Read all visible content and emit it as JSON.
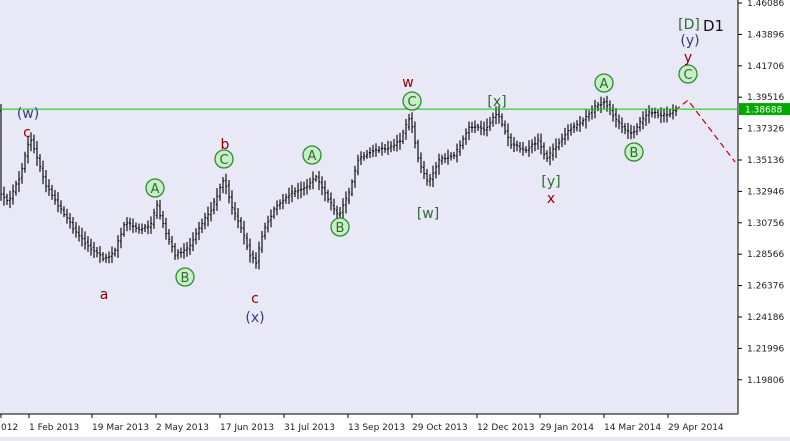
{
  "chart_data": {
    "type": "candlestick-ohlc",
    "timeframe_label": "D1",
    "instrument": "",
    "y_ticks": [
      "1.46086",
      "1.43896",
      "1.41706",
      "1.39516",
      "1.37326",
      "1.35136",
      "1.32946",
      "1.30756",
      "1.28566",
      "1.26376",
      "1.24186",
      "1.21996",
      "1.19806"
    ],
    "x_ticks": [
      "012",
      "1 Feb 2013",
      "19 Mar 2013",
      "2 May 2013",
      "17 Jun 2013",
      "31 Jul 2013",
      "13 Sep 2013",
      "29 Oct 2013",
      "12 Dec 2013",
      "29 Jan 2014",
      "14 Mar 2014",
      "29 Apr 2014"
    ],
    "ylim": [
      1.18,
      1.461
    ],
    "current_price": 1.38688,
    "current_price_label": "1.38688",
    "colors": {
      "background": "#e8e8f6",
      "bars": "#000000",
      "price_line": "#00cc00",
      "price_label_bg": "#00aa00",
      "wave_dark_red": "#8b0000",
      "wave_green": "#2e6b2e",
      "wave_navy": "#3a3a7a",
      "circle_fill": "#c8f0c8",
      "circle_stroke": "#2e8b2e",
      "forecast": "#cc0000"
    },
    "wave_labels": [
      {
        "text": "(w)",
        "style": "navy",
        "circled": false
      },
      {
        "text": "c",
        "style": "dark_red",
        "circled": false
      },
      {
        "text": "A",
        "style": "green",
        "circled": true
      },
      {
        "text": "a",
        "style": "dark_red",
        "circled": false
      },
      {
        "text": "B",
        "style": "green",
        "circled": true
      },
      {
        "text": "b",
        "style": "dark_red",
        "circled": false
      },
      {
        "text": "C",
        "style": "green",
        "circled": true
      },
      {
        "text": "c",
        "style": "dark_red",
        "circled": false
      },
      {
        "text": "(x)",
        "style": "navy",
        "circled": false
      },
      {
        "text": "A",
        "style": "green",
        "circled": true
      },
      {
        "text": "B",
        "style": "green",
        "circled": true
      },
      {
        "text": "w",
        "style": "dark_red",
        "circled": false
      },
      {
        "text": "C",
        "style": "green",
        "circled": true
      },
      {
        "text": "[w]",
        "style": "green",
        "circled": false
      },
      {
        "text": "[x]",
        "style": "green",
        "circled": false
      },
      {
        "text": "[y]",
        "style": "green",
        "circled": false
      },
      {
        "text": "x",
        "style": "dark_red",
        "circled": false
      },
      {
        "text": "A",
        "style": "green",
        "circled": true
      },
      {
        "text": "B",
        "style": "green",
        "circled": true
      },
      {
        "text": "C",
        "style": "green",
        "circled": true
      },
      {
        "text": "y",
        "style": "dark_red",
        "circled": false
      },
      {
        "text": "(y)",
        "style": "navy",
        "circled": false
      },
      {
        "text": "[D]",
        "style": "green",
        "circled": false
      }
    ],
    "price_path": [
      [
        0,
        1.328
      ],
      [
        8,
        1.322
      ],
      [
        20,
        1.34
      ],
      [
        30,
        1.368
      ],
      [
        45,
        1.335
      ],
      [
        60,
        1.318
      ],
      [
        75,
        1.302
      ],
      [
        90,
        1.29
      ],
      [
        105,
        1.282
      ],
      [
        115,
        1.288
      ],
      [
        125,
        1.308
      ],
      [
        138,
        1.303
      ],
      [
        150,
        1.305
      ],
      [
        157,
        1.32
      ],
      [
        165,
        1.302
      ],
      [
        175,
        1.285
      ],
      [
        188,
        1.29
      ],
      [
        200,
        1.305
      ],
      [
        212,
        1.318
      ],
      [
        224,
        1.338
      ],
      [
        232,
        1.318
      ],
      [
        242,
        1.302
      ],
      [
        250,
        1.285
      ],
      [
        256,
        1.28
      ],
      [
        263,
        1.302
      ],
      [
        275,
        1.318
      ],
      [
        290,
        1.328
      ],
      [
        305,
        1.332
      ],
      [
        315,
        1.34
      ],
      [
        325,
        1.328
      ],
      [
        338,
        1.312
      ],
      [
        350,
        1.33
      ],
      [
        358,
        1.352
      ],
      [
        372,
        1.358
      ],
      [
        388,
        1.36
      ],
      [
        400,
        1.365
      ],
      [
        410,
        1.382
      ],
      [
        418,
        1.352
      ],
      [
        428,
        1.335
      ],
      [
        440,
        1.352
      ],
      [
        455,
        1.355
      ],
      [
        470,
        1.375
      ],
      [
        485,
        1.373
      ],
      [
        497,
        1.385
      ],
      [
        510,
        1.363
      ],
      [
        525,
        1.358
      ],
      [
        538,
        1.365
      ],
      [
        546,
        1.352
      ],
      [
        555,
        1.36
      ],
      [
        568,
        1.372
      ],
      [
        582,
        1.378
      ],
      [
        595,
        1.388
      ],
      [
        605,
        1.392
      ],
      [
        615,
        1.38
      ],
      [
        625,
        1.372
      ],
      [
        633,
        1.37
      ],
      [
        640,
        1.378
      ],
      [
        650,
        1.385
      ],
      [
        662,
        1.382
      ],
      [
        675,
        1.386
      ]
    ],
    "forecast_path": [
      [
        675,
        1.386
      ],
      [
        688,
        1.393
      ],
      [
        735,
        1.35
      ]
    ]
  }
}
